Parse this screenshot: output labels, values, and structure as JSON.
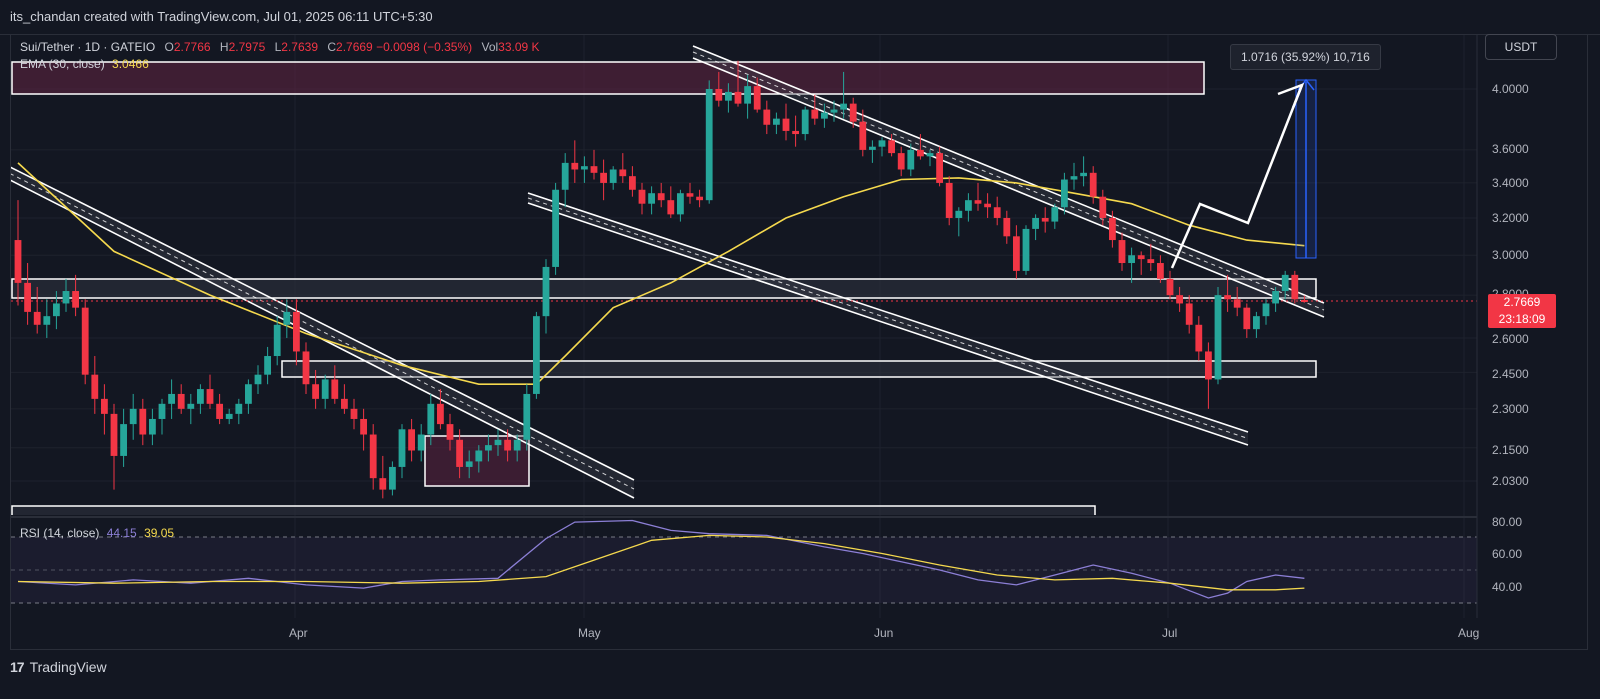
{
  "header": {
    "text": "its_chandan created with TradingView.com, Jul 01, 2025 06:11 UTC+5:30"
  },
  "legend": {
    "symbol": "Sui/Tether · 1D · GATEIO",
    "open_label": "O",
    "open": "2.7766",
    "high_label": "H",
    "high": "2.7975",
    "low_label": "L",
    "low": "2.7639",
    "close_label": "C",
    "close": "2.7669",
    "change": "−0.0098 (−0.35%)",
    "vol_label": "Vol",
    "volume": "33.09 K"
  },
  "ema_legend": {
    "label": "EMA (30, close)",
    "value": "3.0466"
  },
  "rsi_legend": {
    "label": "RSI (14, close)",
    "rsi": "44.15",
    "ma": "39.05"
  },
  "currency_button": "USDT",
  "measure_label": "1.0716 (35.92%) 10,716",
  "price_tag": {
    "price": "2.7669",
    "countdown": "23:18:09"
  },
  "brand": {
    "icon": "tradingview-logo-icon",
    "name": "TradingView"
  },
  "colors": {
    "up": "#26a69a",
    "down": "#f23645",
    "ema": "#f5d94e",
    "rsi": "#8c7fd6",
    "rsi_ma": "#f5d94e",
    "measure": "#2962ff"
  },
  "price_axis": [
    "4.0000",
    "3.6000",
    "3.4000",
    "3.2000",
    "3.0000",
    "2.8000",
    "2.6000",
    "2.4500",
    "2.3000",
    "2.1500",
    "2.0300"
  ],
  "rsi_axis": [
    "80.00",
    "60.00",
    "40.00"
  ],
  "time_axis": [
    "Apr",
    "May",
    "Jun",
    "Jul",
    "Aug"
  ],
  "chart_data": [
    {
      "type": "candlestick",
      "title": "Sui/Tether · 1D · GATEIO",
      "y_scale": "log",
      "ylim": [
        2.0,
        4.2
      ],
      "x_start": "2025-03-03",
      "candles": [
        [
          3.08,
          3.3,
          2.75,
          2.86
        ],
        [
          2.86,
          2.96,
          2.66,
          2.72
        ],
        [
          2.72,
          2.84,
          2.62,
          2.66
        ],
        [
          2.66,
          2.78,
          2.6,
          2.7
        ],
        [
          2.7,
          2.82,
          2.64,
          2.76
        ],
        [
          2.76,
          2.88,
          2.72,
          2.82
        ],
        [
          2.82,
          2.9,
          2.7,
          2.74
        ],
        [
          2.74,
          2.78,
          2.4,
          2.44
        ],
        [
          2.44,
          2.52,
          2.28,
          2.34
        ],
        [
          2.34,
          2.4,
          2.2,
          2.28
        ],
        [
          2.28,
          2.32,
          2.0,
          2.12
        ],
        [
          2.12,
          2.3,
          2.08,
          2.24
        ],
        [
          2.24,
          2.36,
          2.18,
          2.3
        ],
        [
          2.3,
          2.34,
          2.16,
          2.2
        ],
        [
          2.2,
          2.3,
          2.16,
          2.26
        ],
        [
          2.26,
          2.34,
          2.2,
          2.32
        ],
        [
          2.32,
          2.42,
          2.26,
          2.36
        ],
        [
          2.36,
          2.4,
          2.28,
          2.3
        ],
        [
          2.3,
          2.36,
          2.24,
          2.32
        ],
        [
          2.32,
          2.4,
          2.28,
          2.38
        ],
        [
          2.38,
          2.44,
          2.3,
          2.32
        ],
        [
          2.32,
          2.36,
          2.24,
          2.26
        ],
        [
          2.26,
          2.3,
          2.24,
          2.28
        ],
        [
          2.28,
          2.34,
          2.24,
          2.32
        ],
        [
          2.32,
          2.42,
          2.28,
          2.4
        ],
        [
          2.4,
          2.48,
          2.36,
          2.44
        ],
        [
          2.44,
          2.56,
          2.4,
          2.52
        ],
        [
          2.52,
          2.7,
          2.48,
          2.66
        ],
        [
          2.66,
          2.78,
          2.6,
          2.72
        ],
        [
          2.72,
          2.78,
          2.48,
          2.54
        ],
        [
          2.54,
          2.58,
          2.36,
          2.4
        ],
        [
          2.4,
          2.46,
          2.3,
          2.34
        ],
        [
          2.34,
          2.44,
          2.3,
          2.42
        ],
        [
          2.42,
          2.48,
          2.32,
          2.34
        ],
        [
          2.34,
          2.4,
          2.28,
          2.3
        ],
        [
          2.3,
          2.34,
          2.22,
          2.26
        ],
        [
          2.26,
          2.3,
          2.14,
          2.2
        ],
        [
          2.2,
          2.24,
          2.0,
          2.04
        ],
        [
          2.04,
          2.12,
          1.97,
          2.0
        ],
        [
          2.0,
          2.1,
          1.98,
          2.08
        ],
        [
          2.08,
          2.24,
          2.04,
          2.22
        ],
        [
          2.22,
          2.26,
          2.1,
          2.14
        ],
        [
          2.14,
          2.24,
          2.1,
          2.2
        ],
        [
          2.2,
          2.36,
          2.16,
          2.32
        ],
        [
          2.32,
          2.38,
          2.22,
          2.24
        ],
        [
          2.24,
          2.28,
          2.14,
          2.18
        ],
        [
          2.18,
          2.22,
          2.04,
          2.08
        ],
        [
          2.08,
          2.14,
          2.04,
          2.1
        ],
        [
          2.1,
          2.16,
          2.06,
          2.14
        ],
        [
          2.14,
          2.2,
          2.1,
          2.16
        ],
        [
          2.16,
          2.22,
          2.12,
          2.18
        ],
        [
          2.18,
          2.22,
          2.1,
          2.14
        ],
        [
          2.14,
          2.2,
          2.1,
          2.18
        ],
        [
          2.18,
          2.4,
          2.14,
          2.36
        ],
        [
          2.36,
          2.72,
          2.34,
          2.7
        ],
        [
          2.7,
          2.98,
          2.62,
          2.94
        ],
        [
          2.94,
          3.4,
          2.9,
          3.36
        ],
        [
          3.36,
          3.58,
          3.26,
          3.52
        ],
        [
          3.52,
          3.66,
          3.4,
          3.48
        ],
        [
          3.48,
          3.56,
          3.4,
          3.5
        ],
        [
          3.5,
          3.6,
          3.42,
          3.46
        ],
        [
          3.46,
          3.54,
          3.3,
          3.4
        ],
        [
          3.4,
          3.5,
          3.36,
          3.48
        ],
        [
          3.48,
          3.58,
          3.4,
          3.44
        ],
        [
          3.44,
          3.5,
          3.32,
          3.36
        ],
        [
          3.36,
          3.4,
          3.22,
          3.28
        ],
        [
          3.28,
          3.38,
          3.22,
          3.34
        ],
        [
          3.34,
          3.4,
          3.26,
          3.3
        ],
        [
          3.3,
          3.38,
          3.2,
          3.22
        ],
        [
          3.22,
          3.36,
          3.18,
          3.34
        ],
        [
          3.34,
          3.4,
          3.28,
          3.32
        ],
        [
          3.32,
          3.36,
          3.26,
          3.3
        ],
        [
          3.3,
          4.06,
          3.28,
          4.0
        ],
        [
          4.0,
          4.12,
          3.88,
          3.92
        ],
        [
          3.92,
          4.04,
          3.84,
          3.98
        ],
        [
          3.98,
          4.2,
          3.88,
          3.9
        ],
        [
          3.9,
          4.1,
          3.8,
          4.02
        ],
        [
          4.02,
          4.08,
          3.84,
          3.86
        ],
        [
          3.86,
          3.92,
          3.7,
          3.76
        ],
        [
          3.76,
          3.84,
          3.7,
          3.8
        ],
        [
          3.8,
          3.9,
          3.66,
          3.72
        ],
        [
          3.72,
          3.82,
          3.62,
          3.7
        ],
        [
          3.7,
          3.88,
          3.66,
          3.86
        ],
        [
          3.86,
          3.96,
          3.76,
          3.8
        ],
        [
          3.8,
          3.9,
          3.74,
          3.84
        ],
        [
          3.84,
          3.92,
          3.78,
          3.86
        ],
        [
          3.86,
          4.12,
          3.8,
          3.9
        ],
        [
          3.9,
          3.94,
          3.74,
          3.78
        ],
        [
          3.78,
          3.86,
          3.56,
          3.6
        ],
        [
          3.6,
          3.66,
          3.52,
          3.62
        ],
        [
          3.62,
          3.68,
          3.56,
          3.66
        ],
        [
          3.66,
          3.7,
          3.56,
          3.58
        ],
        [
          3.58,
          3.62,
          3.44,
          3.48
        ],
        [
          3.48,
          3.64,
          3.44,
          3.6
        ],
        [
          3.6,
          3.7,
          3.54,
          3.56
        ],
        [
          3.56,
          3.6,
          3.5,
          3.58
        ],
        [
          3.58,
          3.62,
          3.38,
          3.4
        ],
        [
          3.4,
          3.44,
          3.16,
          3.2
        ],
        [
          3.2,
          3.26,
          3.1,
          3.24
        ],
        [
          3.24,
          3.34,
          3.18,
          3.3
        ],
        [
          3.3,
          3.4,
          3.24,
          3.28
        ],
        [
          3.28,
          3.34,
          3.2,
          3.26
        ],
        [
          3.26,
          3.32,
          3.16,
          3.2
        ],
        [
          3.2,
          3.24,
          3.06,
          3.1
        ],
        [
          3.1,
          3.16,
          2.88,
          2.92
        ],
        [
          2.92,
          3.16,
          2.9,
          3.14
        ],
        [
          3.14,
          3.22,
          3.08,
          3.2
        ],
        [
          3.2,
          3.26,
          3.12,
          3.18
        ],
        [
          3.18,
          3.28,
          3.14,
          3.26
        ],
        [
          3.26,
          3.46,
          3.22,
          3.42
        ],
        [
          3.42,
          3.52,
          3.36,
          3.44
        ],
        [
          3.44,
          3.56,
          3.38,
          3.46
        ],
        [
          3.46,
          3.5,
          3.28,
          3.32
        ],
        [
          3.32,
          3.36,
          3.16,
          3.2
        ],
        [
          3.2,
          3.24,
          3.04,
          3.08
        ],
        [
          3.08,
          3.12,
          2.92,
          2.96
        ],
        [
          2.96,
          3.04,
          2.86,
          3.0
        ],
        [
          3.0,
          3.02,
          2.9,
          2.98
        ],
        [
          2.98,
          3.06,
          2.92,
          2.96
        ],
        [
          2.96,
          3.0,
          2.86,
          2.88
        ],
        [
          2.88,
          2.92,
          2.78,
          2.8
        ],
        [
          2.8,
          2.84,
          2.72,
          2.76
        ],
        [
          2.76,
          2.8,
          2.62,
          2.66
        ],
        [
          2.66,
          2.7,
          2.5,
          2.54
        ],
        [
          2.54,
          2.58,
          2.3,
          2.42
        ],
        [
          2.42,
          2.84,
          2.4,
          2.8
        ],
        [
          2.8,
          2.9,
          2.72,
          2.78
        ],
        [
          2.78,
          2.84,
          2.7,
          2.74
        ],
        [
          2.74,
          2.76,
          2.6,
          2.64
        ],
        [
          2.64,
          2.72,
          2.6,
          2.7
        ],
        [
          2.7,
          2.78,
          2.66,
          2.76
        ],
        [
          2.76,
          2.84,
          2.72,
          2.82
        ],
        [
          2.82,
          2.92,
          2.78,
          2.9
        ],
        [
          2.9,
          2.92,
          2.76,
          2.78
        ],
        [
          2.7766,
          2.7975,
          2.7639,
          2.7669
        ]
      ],
      "ema_label": "EMA (30, close)",
      "ema": [
        [
          0,
          3.52
        ],
        [
          10,
          3.02
        ],
        [
          20,
          2.8
        ],
        [
          30,
          2.62
        ],
        [
          40,
          2.48
        ],
        [
          48,
          2.4
        ],
        [
          54,
          2.4
        ],
        [
          57,
          2.52
        ],
        [
          62,
          2.74
        ],
        [
          68,
          2.86
        ],
        [
          74,
          3.02
        ],
        [
          80,
          3.2
        ],
        [
          86,
          3.32
        ],
        [
          92,
          3.42
        ],
        [
          98,
          3.43
        ],
        [
          104,
          3.4
        ],
        [
          110,
          3.34
        ],
        [
          116,
          3.28
        ],
        [
          122,
          3.16
        ],
        [
          128,
          3.08
        ],
        [
          134,
          3.05
        ]
      ]
    },
    {
      "type": "line",
      "title": "RSI (14, close)",
      "ylim": [
        20,
        85
      ],
      "series": [
        {
          "name": "RSI",
          "values": [
            [
              0,
              43
            ],
            [
              6,
              41
            ],
            [
              12,
              44
            ],
            [
              18,
              42
            ],
            [
              24,
              45
            ],
            [
              30,
              41
            ],
            [
              36,
              39
            ],
            [
              40,
              43
            ],
            [
              44,
              44
            ],
            [
              50,
              45
            ],
            [
              55,
              69
            ],
            [
              58,
              79
            ],
            [
              64,
              80
            ],
            [
              68,
              74
            ],
            [
              72,
              72
            ],
            [
              78,
              71
            ],
            [
              84,
              64
            ],
            [
              88,
              60
            ],
            [
              92,
              55
            ],
            [
              96,
              50
            ],
            [
              100,
              44
            ],
            [
              104,
              41
            ],
            [
              108,
              47
            ],
            [
              112,
              53
            ],
            [
              116,
              48
            ],
            [
              120,
              42
            ],
            [
              124,
              33
            ],
            [
              126,
              36
            ],
            [
              128,
              43
            ],
            [
              131,
              47
            ],
            [
              134,
              45
            ]
          ]
        },
        {
          "name": "RSI MA",
          "values": [
            [
              0,
              43
            ],
            [
              10,
              42
            ],
            [
              20,
              43
            ],
            [
              30,
              43
            ],
            [
              40,
              42
            ],
            [
              48,
              43
            ],
            [
              55,
              46
            ],
            [
              60,
              56
            ],
            [
              66,
              68
            ],
            [
              72,
              71
            ],
            [
              78,
              70
            ],
            [
              84,
              66
            ],
            [
              90,
              60
            ],
            [
              96,
              53
            ],
            [
              102,
              47
            ],
            [
              108,
              44
            ],
            [
              114,
              45
            ],
            [
              120,
              42
            ],
            [
              126,
              38
            ],
            [
              131,
              38
            ],
            [
              134,
              39
            ]
          ]
        }
      ]
    }
  ]
}
